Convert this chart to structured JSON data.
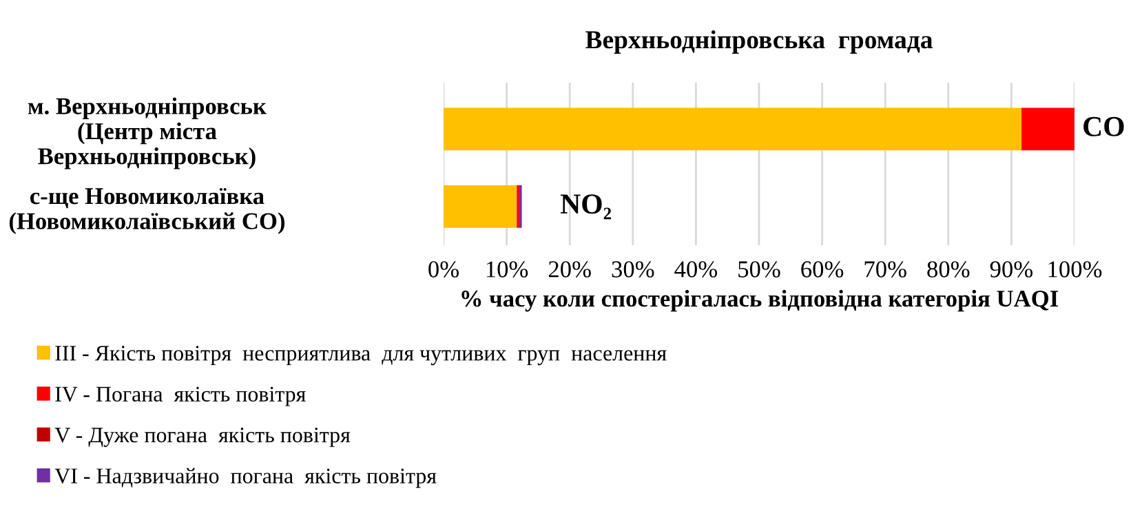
{
  "chart_data": {
    "type": "bar",
    "orientation": "horizontal",
    "stacked": true,
    "title": "Верхньодніпровська  громада",
    "xlabel": "% часу коли спостерігалась відповідна категорія UAQI",
    "categories": [
      "м. Верхньодніпровськ (Центр міста Верхньодніпровськ)",
      "с-ще Новомиколаївка (Новомиколаївський СО)"
    ],
    "series": [
      {
        "name": "III - Якість повітря  несприятлива  для чутливих  груп  населення",
        "color": "#ffc000",
        "values": [
          91.6,
          11.6
        ]
      },
      {
        "name": "IV - Погана  якість повітря",
        "color": "#ff0000",
        "values": [
          8.4,
          0.4
        ]
      },
      {
        "name": "V - Дуже погана  якість повітря",
        "color": "#c00000",
        "values": [
          null,
          null
        ]
      },
      {
        "name": "VI - Надзвичайно  погана  якість повітря",
        "color": "#7030a0",
        "values": [
          null,
          0.4
        ]
      }
    ],
    "xlim": [
      0,
      100
    ],
    "xticks": [
      {
        "value": 0,
        "label": "0%"
      },
      {
        "value": 10,
        "label": "10%"
      },
      {
        "value": 20,
        "label": "20%"
      },
      {
        "value": 30,
        "label": "30%"
      },
      {
        "value": 40,
        "label": "40%"
      },
      {
        "value": 50,
        "label": "50%"
      },
      {
        "value": 60,
        "label": "60%"
      },
      {
        "value": 70,
        "label": "70%"
      },
      {
        "value": 80,
        "label": "80%"
      },
      {
        "value": 90,
        "label": "90%"
      },
      {
        "value": 100,
        "label": "100%"
      }
    ],
    "annotations": [
      {
        "text": "CO",
        "x": 100,
        "y": "м. Верхньодніпровськ (Центр міста Верхньодніпровськ)"
      },
      {
        "text": "NO₂",
        "x": 12.4,
        "y": "с-ще Новомиколаївка (Новомиколаївський СО)"
      }
    ],
    "grid": "x",
    "legend": "bottom left"
  }
}
